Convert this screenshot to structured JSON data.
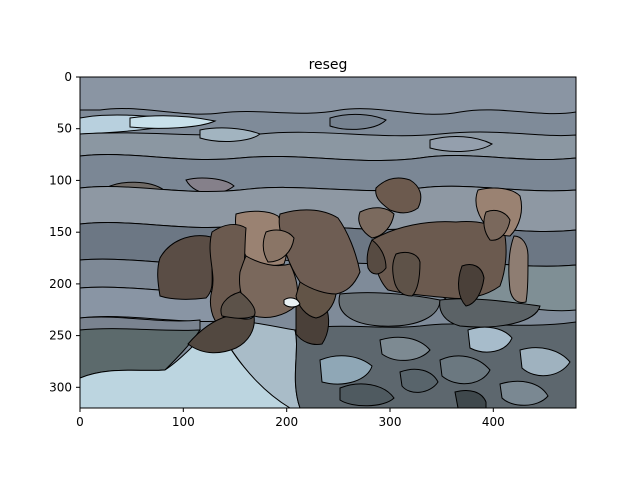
{
  "figure": {
    "title": "reseg"
  },
  "image_axes": {
    "x_ticks": [
      "0",
      "100",
      "200",
      "300",
      "400"
    ],
    "y_ticks": [
      "0",
      "50",
      "100",
      "150",
      "200",
      "250",
      "300"
    ],
    "x_range": [
      0,
      480
    ],
    "y_range": [
      0,
      320
    ],
    "y_inverted": true,
    "grid": false
  },
  "image_content": {
    "description_kind": "superpixel segmentation overlay of two dogs on grass and snow",
    "segment_outline_color": "#000000",
    "palette": {
      "sky_steel": "#7f8b99",
      "light_blue": "#b8d0de",
      "pale_cyan": "#c8e0ea",
      "grey_blue": "#8a95a3",
      "slate": "#6e7a86",
      "dark_slate": "#4f5a60",
      "dog_brown": "#6b5a4f",
      "dog_tan": "#9a8272",
      "dog_dark": "#4a4039",
      "grass_dark": "#5c6a6c",
      "snow": "#bcd5e0"
    }
  }
}
